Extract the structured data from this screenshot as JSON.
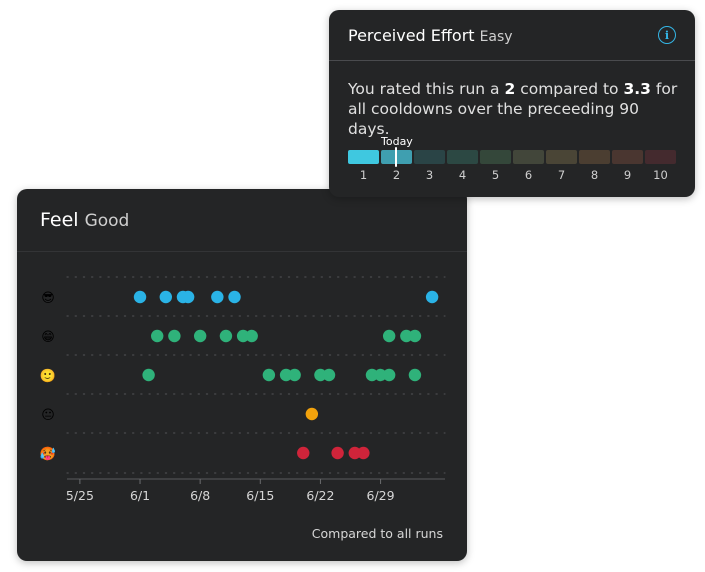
{
  "effort": {
    "title": "Perceived Effort",
    "rating_word": "Easy",
    "text_prefix": "You rated this run a ",
    "rating": "2",
    "text_middle": " compared to ",
    "average": "3.3",
    "text_suffix": " for all cooldowns over the preceeding 90 days.",
    "today_label": "Today",
    "today_value": 2,
    "scale": [
      {
        "label": "1",
        "color": "#3fc8e0"
      },
      {
        "label": "2",
        "color": "#3f9fb0"
      },
      {
        "label": "3",
        "color": "#2a4446"
      },
      {
        "label": "4",
        "color": "#2c4843"
      },
      {
        "label": "5",
        "color": "#34473a"
      },
      {
        "label": "6",
        "color": "#42463a"
      },
      {
        "label": "7",
        "color": "#4a4536"
      },
      {
        "label": "8",
        "color": "#4b3e31"
      },
      {
        "label": "9",
        "color": "#4a3630"
      },
      {
        "label": "10",
        "color": "#442a2e"
      }
    ]
  },
  "feel": {
    "title": "Feel",
    "rating_word": "Good",
    "footnote": "Compared to all runs"
  },
  "chart_data": {
    "type": "scatter",
    "title": "Feel",
    "xlabel": "",
    "ylabel": "",
    "x_axis": "day offset from 5/25",
    "x_ticks": [
      {
        "day": 0,
        "label": "5/25"
      },
      {
        "day": 7,
        "label": "6/1"
      },
      {
        "day": 14,
        "label": "6/8"
      },
      {
        "day": 21,
        "label": "6/15"
      },
      {
        "day": 28,
        "label": "6/22"
      },
      {
        "day": 35,
        "label": "6/29"
      }
    ],
    "xlim": [
      -1.5,
      42.5
    ],
    "rows": [
      {
        "name": "great",
        "emoji": "😎",
        "color": "#2ab3e6",
        "x": [
          7,
          10,
          12,
          12.6,
          16,
          18,
          41
        ]
      },
      {
        "name": "good",
        "emoji": "😁",
        "color": "#2fb27a",
        "x": [
          9,
          11,
          14,
          17,
          19,
          20,
          36,
          38,
          39
        ]
      },
      {
        "name": "okay",
        "emoji": "🙂",
        "color": "#2fb27a",
        "x": [
          8,
          22,
          24,
          25,
          28,
          29,
          34,
          35,
          36,
          39
        ]
      },
      {
        "name": "meh",
        "emoji": "😐",
        "color": "#f2a20c",
        "x": [
          27
        ]
      },
      {
        "name": "bad",
        "emoji": "🥵",
        "color": "#d0243a",
        "x": [
          26,
          30,
          32,
          33
        ]
      }
    ]
  }
}
